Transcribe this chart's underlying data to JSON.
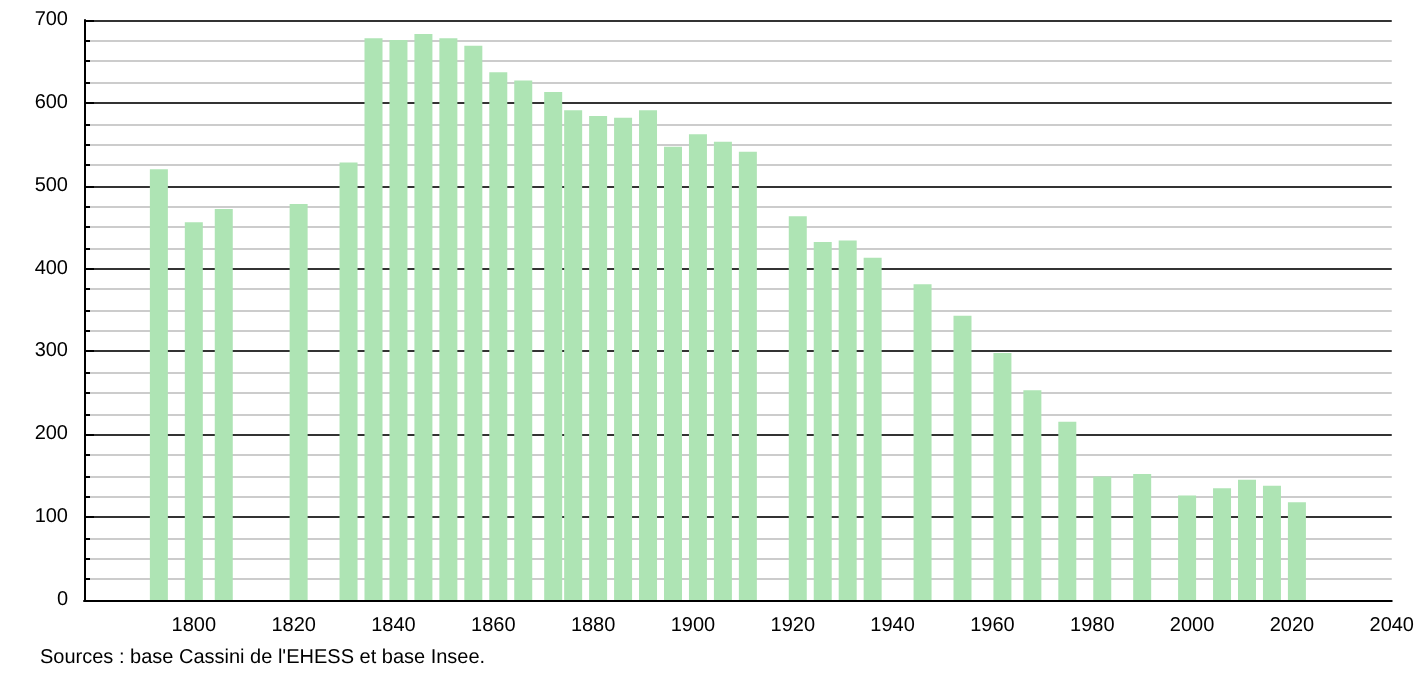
{
  "chart_data": {
    "type": "bar",
    "x": [
      1793,
      1800,
      1806,
      1821,
      1831,
      1836,
      1841,
      1846,
      1851,
      1856,
      1861,
      1866,
      1872,
      1876,
      1881,
      1886,
      1891,
      1896,
      1901,
      1906,
      1911,
      1921,
      1926,
      1931,
      1936,
      1946,
      1954,
      1962,
      1968,
      1975,
      1982,
      1990,
      1999,
      2006,
      2011,
      2016,
      2021
    ],
    "values": [
      520,
      456,
      472,
      478,
      528,
      678,
      676,
      683,
      678,
      669,
      637,
      627,
      613,
      591,
      584,
      582,
      591,
      547,
      562,
      553,
      541,
      463,
      432,
      434,
      413,
      381,
      343,
      298,
      253,
      215,
      149,
      152,
      126,
      135,
      145,
      138,
      118
    ],
    "color": "#aee4b4",
    "xlim": [
      1778,
      2040
    ],
    "xticks": [
      1800,
      1820,
      1840,
      1860,
      1880,
      1900,
      1920,
      1940,
      1960,
      1980,
      2000,
      2020,
      2040
    ],
    "ylim": [
      0,
      700
    ],
    "yticks": [
      0,
      100,
      200,
      300,
      400,
      500,
      600,
      700
    ],
    "grid": "y",
    "annotations": [
      "Sources : base Cassini de l'EHESS et base Insee."
    ]
  }
}
